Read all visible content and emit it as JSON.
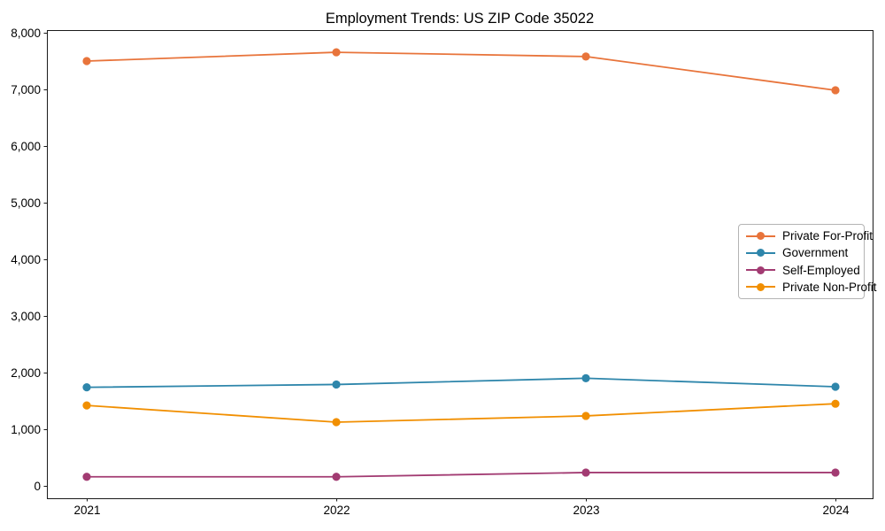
{
  "chart_data": {
    "type": "line",
    "title": "Employment Trends: US ZIP Code 35022",
    "categories": [
      "2021",
      "2022",
      "2023",
      "2024"
    ],
    "series": [
      {
        "name": "Private For-Profit",
        "color": "#E8743B",
        "values": [
          7500,
          7655,
          7580,
          6985
        ]
      },
      {
        "name": "Government",
        "color": "#2E86AB",
        "values": [
          1740,
          1790,
          1900,
          1750
        ]
      },
      {
        "name": "Self-Employed",
        "color": "#A23B72",
        "values": [
          160,
          160,
          235,
          235
        ]
      },
      {
        "name": "Private Non-Profit",
        "color": "#F18F01",
        "values": [
          1420,
          1125,
          1235,
          1450
        ]
      }
    ],
    "xlabel": "",
    "ylabel": "",
    "ylim": [
      -220,
      8050
    ],
    "y_ticks": [
      0,
      1000,
      2000,
      3000,
      4000,
      5000,
      6000,
      7000,
      8000
    ],
    "y_tick_labels": [
      "0",
      "1,000",
      "2,000",
      "3,000",
      "4,000",
      "5,000",
      "6,000",
      "7,000",
      "8,000"
    ],
    "grid": false,
    "marker": "circle",
    "legend": {
      "position": "center-right",
      "entries": [
        "Private For-Profit",
        "Government",
        "Self-Employed",
        "Private Non-Profit"
      ]
    }
  }
}
